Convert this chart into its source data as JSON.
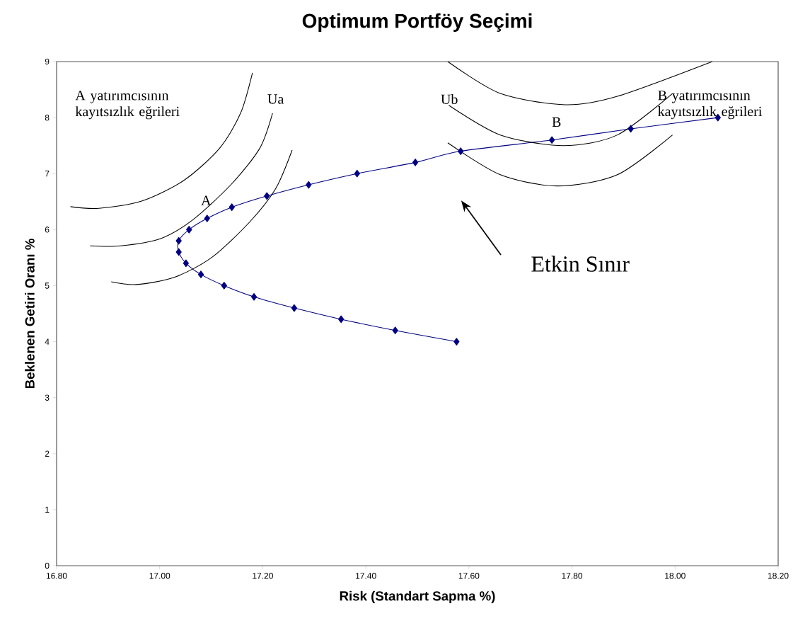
{
  "chart_data": {
    "type": "line",
    "title": "Optimum Portföy Seçimi",
    "xlabel": "Risk (Standart Sapma %)",
    "ylabel": "Beklenen Getiri Oranı %",
    "xlim": [
      16.8,
      18.2
    ],
    "ylim": [
      0,
      9
    ],
    "xticks": [
      {
        "value": 16.8,
        "label": "16.80"
      },
      {
        "value": 17.0,
        "label": "17.00"
      },
      {
        "value": 17.2,
        "label": "17.20"
      },
      {
        "value": 17.4,
        "label": "17.40"
      },
      {
        "value": 17.6,
        "label": "17.60"
      },
      {
        "value": 17.8,
        "label": "17.80"
      },
      {
        "value": 18.0,
        "label": "18.00"
      },
      {
        "value": 18.2,
        "label": "18.20"
      }
    ],
    "yticks": [
      0,
      1,
      2,
      3,
      4,
      5,
      6,
      7,
      8,
      9
    ],
    "grid": false,
    "line_style": "solid",
    "series": [
      {
        "color": "#000080",
        "marker": "diamond",
        "x": [
          17.576,
          17.457,
          17.352,
          17.261,
          17.183,
          17.125,
          17.08,
          17.051,
          17.037,
          17.037,
          17.057,
          17.092,
          17.14,
          17.208,
          17.289,
          17.383,
          17.496,
          17.584,
          17.761,
          17.914,
          18.083
        ],
        "values": [
          4.0,
          4.2,
          4.4,
          4.6,
          4.8,
          5.0,
          5.2,
          5.4,
          5.6,
          5.8,
          6.0,
          6.2,
          6.4,
          6.6,
          6.8,
          7.0,
          7.2,
          7.4,
          7.6,
          7.8,
          8.0
        ]
      },
      {
        "color": "#000000",
        "marker": "none",
        "x": [
          16.827,
          16.882,
          16.965,
          17.047,
          17.116,
          17.157,
          17.18
        ],
        "values": [
          6.41,
          6.38,
          6.51,
          6.88,
          7.45,
          8.08,
          8.8
        ]
      },
      {
        "color": "#000000",
        "marker": "none",
        "x": [
          16.865,
          16.924,
          17.002,
          17.065,
          17.139,
          17.194,
          17.219
        ],
        "values": [
          5.71,
          5.71,
          5.84,
          6.18,
          6.81,
          7.45,
          8.08
        ]
      },
      {
        "color": "#000000",
        "marker": "none",
        "x": [
          16.906,
          16.955,
          17.029,
          17.102,
          17.175,
          17.225,
          17.257
        ],
        "values": [
          5.07,
          5.02,
          5.15,
          5.51,
          6.14,
          6.73,
          7.42
        ]
      },
      {
        "color": "#000000",
        "marker": "none",
        "x": [
          17.559,
          17.661,
          17.787,
          17.888,
          18.072
        ],
        "values": [
          9.0,
          8.43,
          8.23,
          8.38,
          9.0
        ]
      },
      {
        "color": "#000000",
        "marker": "none",
        "x": [
          17.561,
          17.661,
          17.783,
          17.888,
          17.995
        ],
        "values": [
          8.22,
          7.69,
          7.5,
          7.69,
          8.43
        ]
      },
      {
        "color": "#000000",
        "marker": "none",
        "x": [
          17.559,
          17.661,
          17.772,
          17.888,
          17.995
        ],
        "values": [
          7.55,
          6.98,
          6.78,
          6.98,
          7.69
        ]
      }
    ],
    "annotations": [
      "A yatırımcısının kayıtsızlık eğrileri",
      "Ua",
      "Ub",
      "B yatırımcısının kayıtsızlık eğrileri",
      "Etkin Sınır",
      "A",
      "B"
    ]
  }
}
